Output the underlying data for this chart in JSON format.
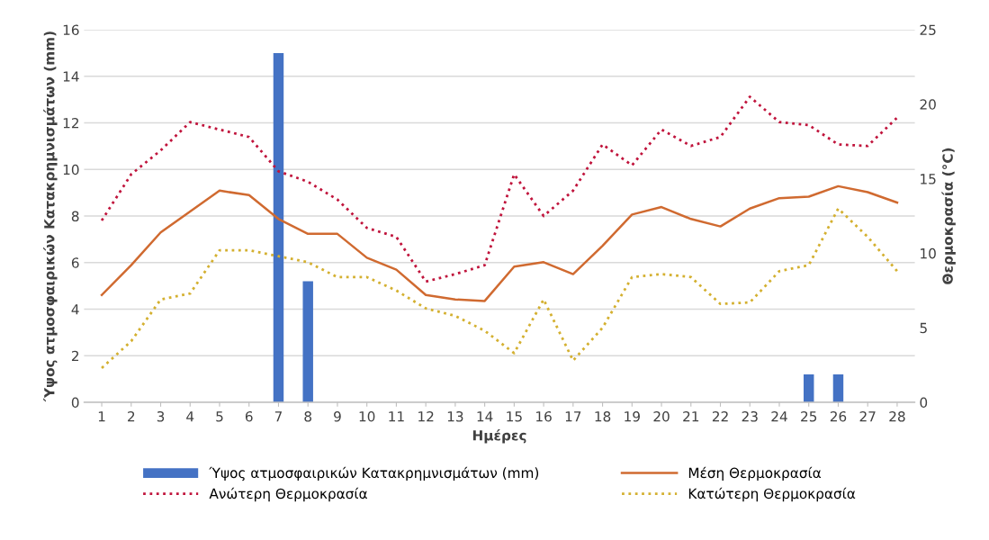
{
  "chart_data": {
    "type": "bar",
    "xlabel": "Ημέρες",
    "ylabel": "Ύψος ατμοσφαιρικών Κατακρημνισμάτων (mm)",
    "y2label": "Θερμοκρασία (°C)",
    "categories": [
      "1",
      "2",
      "3",
      "4",
      "5",
      "6",
      "7",
      "8",
      "9",
      "10",
      "11",
      "12",
      "13",
      "14",
      "15",
      "16",
      "17",
      "18",
      "19",
      "20",
      "21",
      "22",
      "23",
      "24",
      "25",
      "26",
      "27",
      "28"
    ],
    "series": [
      {
        "name": "Ύψος ατμοσφαιρικών Κατακρημνισμάτων (mm)",
        "color": "#4472c4",
        "values": [
          0,
          0,
          0,
          0,
          0,
          0,
          15,
          5.2,
          0,
          0,
          0,
          0,
          0,
          0,
          0,
          0,
          0,
          0,
          0,
          0,
          0,
          0,
          0,
          0,
          1.2,
          1.2,
          0,
          0
        ]
      },
      {
        "name": "Μέση Θερμοκρασία",
        "type": "line",
        "axis": "y2",
        "color": "#d06a30",
        "line_style": "solid",
        "values": [
          7.2,
          9.2,
          11.4,
          12.8,
          14.2,
          13.9,
          12.3,
          11.3,
          11.3,
          9.7,
          8.9,
          7.2,
          6.9,
          6.8,
          9.1,
          9.4,
          8.6,
          10.5,
          12.6,
          13.1,
          12.3,
          11.8,
          13.0,
          13.7,
          13.8,
          14.5,
          14.1,
          13.4
        ]
      },
      {
        "name": "Ανώτερη Θερμοκρασία",
        "type": "line",
        "axis": "y2",
        "color": "#c0143c",
        "line_style": "dotted",
        "values": [
          12.2,
          15.3,
          16.9,
          18.8,
          18.3,
          17.8,
          15.5,
          14.8,
          13.6,
          11.7,
          11.1,
          8.1,
          8.6,
          9.2,
          15.3,
          12.5,
          14.2,
          17.3,
          15.9,
          18.3,
          17.2,
          17.8,
          20.5,
          18.8,
          18.6,
          17.3,
          17.2,
          19.1
        ]
      },
      {
        "name": "Κατώτερη Θερμοκρασία",
        "type": "line",
        "axis": "y2",
        "color": "#d4b030",
        "line_style": "dotted",
        "values": [
          2.3,
          4.1,
          6.9,
          7.3,
          10.2,
          10.2,
          9.8,
          9.4,
          8.4,
          8.4,
          7.5,
          6.3,
          5.8,
          4.8,
          3.3,
          6.9,
          2.8,
          5.0,
          8.4,
          8.6,
          8.4,
          6.6,
          6.7,
          8.8,
          9.2,
          13.0,
          11.1,
          8.8
        ]
      }
    ],
    "ylim": [
      0,
      16
    ],
    "yticks": [
      0,
      2,
      4,
      6,
      8,
      10,
      12,
      14,
      16
    ],
    "y2lim": [
      0,
      25
    ],
    "y2ticks": [
      0,
      5,
      10,
      15,
      20,
      25
    ],
    "grid": "y",
    "legend": "bottom"
  }
}
